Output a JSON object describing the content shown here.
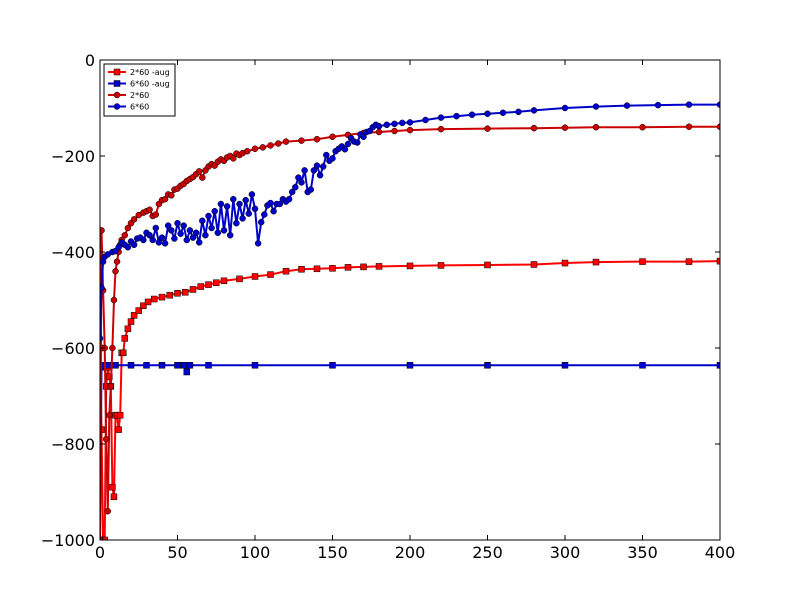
{
  "chart_data": {
    "type": "line",
    "title": "",
    "xlabel": "",
    "ylabel": "",
    "xlim": [
      0,
      400
    ],
    "ylim": [
      -1000,
      0
    ],
    "xticks": [
      0,
      50,
      100,
      150,
      200,
      250,
      300,
      350,
      400
    ],
    "yticks": [
      -1000,
      -800,
      -600,
      -400,
      -200,
      0
    ],
    "xtick_labels": [
      "0",
      "50",
      "100",
      "150",
      "200",
      "250",
      "300",
      "350",
      "400"
    ],
    "ytick_labels": [
      "−1000",
      "−800",
      "−600",
      "−400",
      "−200",
      "0"
    ],
    "grid": false,
    "legend_position": "top-left",
    "series": [
      {
        "name": "2*60 -aug",
        "color": "#ff0000",
        "marker": "square",
        "points": [
          [
            0,
            -600
          ],
          [
            1,
            -770
          ],
          [
            2,
            -1000
          ],
          [
            3,
            -1000
          ],
          [
            4,
            -680
          ],
          [
            5,
            -640
          ],
          [
            6,
            -660
          ],
          [
            7,
            -680
          ],
          [
            8,
            -890
          ],
          [
            9,
            -910
          ],
          [
            10,
            -740
          ],
          [
            11,
            -740
          ],
          [
            12,
            -770
          ],
          [
            13,
            -740
          ],
          [
            14,
            -610
          ],
          [
            15,
            -610
          ],
          [
            16,
            -580
          ],
          [
            18,
            -560
          ],
          [
            20,
            -545
          ],
          [
            22,
            -532
          ],
          [
            25,
            -522
          ],
          [
            28,
            -512
          ],
          [
            31,
            -504
          ],
          [
            35,
            -498
          ],
          [
            40,
            -494
          ],
          [
            45,
            -490
          ],
          [
            50,
            -486
          ],
          [
            55,
            -484
          ],
          [
            60,
            -478
          ],
          [
            65,
            -472
          ],
          [
            70,
            -468
          ],
          [
            75,
            -464
          ],
          [
            80,
            -460
          ],
          [
            90,
            -456
          ],
          [
            100,
            -451
          ],
          [
            110,
            -447
          ],
          [
            120,
            -440
          ],
          [
            130,
            -436
          ],
          [
            140,
            -435
          ],
          [
            150,
            -434
          ],
          [
            160,
            -432
          ],
          [
            170,
            -431
          ],
          [
            180,
            -430
          ],
          [
            200,
            -429
          ],
          [
            220,
            -428
          ],
          [
            250,
            -427
          ],
          [
            280,
            -426
          ],
          [
            300,
            -423
          ],
          [
            320,
            -421
          ],
          [
            350,
            -420
          ],
          [
            380,
            -420
          ],
          [
            400,
            -419
          ]
        ]
      },
      {
        "name": "6*60 -aug",
        "color": "#0000cc",
        "marker": "square",
        "points": [
          [
            0,
            -1000
          ],
          [
            1,
            -640
          ],
          [
            2,
            -636
          ],
          [
            5,
            -636
          ],
          [
            10,
            -636
          ],
          [
            20,
            -636
          ],
          [
            30,
            -636
          ],
          [
            40,
            -636
          ],
          [
            50,
            -636
          ],
          [
            54,
            -636
          ],
          [
            56,
            -650
          ],
          [
            58,
            -636
          ],
          [
            70,
            -636
          ],
          [
            100,
            -636
          ],
          [
            150,
            -636
          ],
          [
            200,
            -636
          ],
          [
            250,
            -636
          ],
          [
            300,
            -636
          ],
          [
            350,
            -636
          ],
          [
            400,
            -636
          ]
        ]
      },
      {
        "name": "2*60",
        "color": "#cc0000",
        "marker": "circle",
        "points": [
          [
            0,
            -1000
          ],
          [
            1,
            -355
          ],
          [
            2,
            -480
          ],
          [
            3,
            -600
          ],
          [
            4,
            -790
          ],
          [
            5,
            -940
          ],
          [
            6,
            -740
          ],
          [
            7,
            -680
          ],
          [
            8,
            -600
          ],
          [
            9,
            -500
          ],
          [
            10,
            -440
          ],
          [
            11,
            -420
          ],
          [
            12,
            -400
          ],
          [
            13,
            -385
          ],
          [
            14,
            -375
          ],
          [
            16,
            -365
          ],
          [
            18,
            -350
          ],
          [
            20,
            -340
          ],
          [
            22,
            -332
          ],
          [
            25,
            -323
          ],
          [
            28,
            -318
          ],
          [
            30,
            -315
          ],
          [
            32,
            -312
          ],
          [
            34,
            -325
          ],
          [
            36,
            -322
          ],
          [
            38,
            -300
          ],
          [
            40,
            -292
          ],
          [
            42,
            -290
          ],
          [
            44,
            -280
          ],
          [
            46,
            -282
          ],
          [
            48,
            -270
          ],
          [
            50,
            -268
          ],
          [
            52,
            -262
          ],
          [
            54,
            -258
          ],
          [
            56,
            -252
          ],
          [
            58,
            -248
          ],
          [
            60,
            -244
          ],
          [
            62,
            -238
          ],
          [
            64,
            -232
          ],
          [
            66,
            -245
          ],
          [
            68,
            -230
          ],
          [
            70,
            -222
          ],
          [
            72,
            -217
          ],
          [
            74,
            -220
          ],
          [
            76,
            -212
          ],
          [
            78,
            -207
          ],
          [
            80,
            -210
          ],
          [
            82,
            -203
          ],
          [
            84,
            -200
          ],
          [
            86,
            -205
          ],
          [
            88,
            -195
          ],
          [
            90,
            -198
          ],
          [
            92,
            -194
          ],
          [
            95,
            -190
          ],
          [
            100,
            -185
          ],
          [
            105,
            -182
          ],
          [
            110,
            -178
          ],
          [
            115,
            -174
          ],
          [
            120,
            -170
          ],
          [
            130,
            -168
          ],
          [
            140,
            -165
          ],
          [
            150,
            -160
          ],
          [
            160,
            -156
          ],
          [
            170,
            -152
          ],
          [
            180,
            -150
          ],
          [
            190,
            -148
          ],
          [
            200,
            -146
          ],
          [
            220,
            -144
          ],
          [
            250,
            -143
          ],
          [
            280,
            -142
          ],
          [
            300,
            -141
          ],
          [
            320,
            -140
          ],
          [
            350,
            -140
          ],
          [
            380,
            -139
          ],
          [
            400,
            -139
          ]
        ]
      },
      {
        "name": "6*60",
        "color": "#0000cc",
        "marker": "circle",
        "points": [
          [
            0,
            -580
          ],
          [
            1,
            -475
          ],
          [
            2,
            -420
          ],
          [
            3,
            -410
          ],
          [
            5,
            -405
          ],
          [
            8,
            -400
          ],
          [
            10,
            -398
          ],
          [
            12,
            -390
          ],
          [
            14,
            -380
          ],
          [
            16,
            -385
          ],
          [
            18,
            -390
          ],
          [
            20,
            -378
          ],
          [
            22,
            -385
          ],
          [
            24,
            -372
          ],
          [
            26,
            -370
          ],
          [
            28,
            -375
          ],
          [
            30,
            -360
          ],
          [
            32,
            -365
          ],
          [
            34,
            -375
          ],
          [
            36,
            -350
          ],
          [
            38,
            -380
          ],
          [
            40,
            -370
          ],
          [
            42,
            -382
          ],
          [
            44,
            -345
          ],
          [
            46,
            -355
          ],
          [
            48,
            -372
          ],
          [
            50,
            -340
          ],
          [
            52,
            -362
          ],
          [
            54,
            -345
          ],
          [
            56,
            -375
          ],
          [
            58,
            -355
          ],
          [
            60,
            -370
          ],
          [
            62,
            -360
          ],
          [
            64,
            -380
          ],
          [
            66,
            -335
          ],
          [
            68,
            -365
          ],
          [
            70,
            -325
          ],
          [
            72,
            -350
          ],
          [
            74,
            -315
          ],
          [
            76,
            -360
          ],
          [
            78,
            -300
          ],
          [
            80,
            -355
          ],
          [
            82,
            -305
          ],
          [
            84,
            -365
          ],
          [
            86,
            -290
          ],
          [
            88,
            -340
          ],
          [
            90,
            -300
          ],
          [
            92,
            -330
          ],
          [
            94,
            -292
          ],
          [
            96,
            -320
          ],
          [
            98,
            -280
          ],
          [
            100,
            -310
          ],
          [
            102,
            -382
          ],
          [
            104,
            -338
          ],
          [
            106,
            -322
          ],
          [
            108,
            -303
          ],
          [
            110,
            -298
          ],
          [
            112,
            -315
          ],
          [
            114,
            -300
          ],
          [
            116,
            -300
          ],
          [
            118,
            -290
          ],
          [
            120,
            -295
          ],
          [
            122,
            -290
          ],
          [
            124,
            -275
          ],
          [
            126,
            -265
          ],
          [
            128,
            -245
          ],
          [
            130,
            -255
          ],
          [
            132,
            -230
          ],
          [
            134,
            -275
          ],
          [
            136,
            -270
          ],
          [
            138,
            -230
          ],
          [
            140,
            -220
          ],
          [
            142,
            -240
          ],
          [
            144,
            -222
          ],
          [
            146,
            -198
          ],
          [
            148,
            -210
          ],
          [
            150,
            -205
          ],
          [
            152,
            -190
          ],
          [
            154,
            -185
          ],
          [
            156,
            -180
          ],
          [
            158,
            -186
          ],
          [
            160,
            -175
          ],
          [
            162,
            -163
          ],
          [
            164,
            -170
          ],
          [
            166,
            -172
          ],
          [
            168,
            -155
          ],
          [
            170,
            -160
          ],
          [
            172,
            -150
          ],
          [
            174,
            -148
          ],
          [
            176,
            -140
          ],
          [
            178,
            -135
          ],
          [
            180,
            -138
          ],
          [
            185,
            -135
          ],
          [
            190,
            -133
          ],
          [
            195,
            -131
          ],
          [
            200,
            -130
          ],
          [
            210,
            -125
          ],
          [
            220,
            -120
          ],
          [
            230,
            -117
          ],
          [
            240,
            -114
          ],
          [
            250,
            -112
          ],
          [
            260,
            -110
          ],
          [
            270,
            -108
          ],
          [
            280,
            -105
          ],
          [
            300,
            -100
          ],
          [
            320,
            -97
          ],
          [
            340,
            -95
          ],
          [
            360,
            -94
          ],
          [
            380,
            -93
          ],
          [
            400,
            -93
          ]
        ]
      }
    ]
  }
}
